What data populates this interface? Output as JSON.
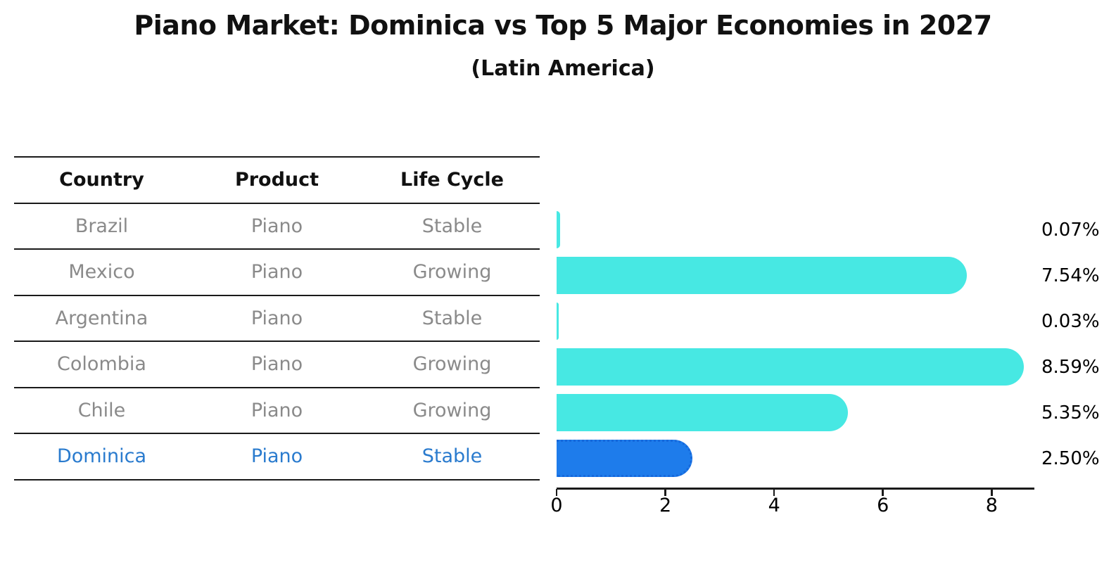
{
  "header": {
    "title": "Piano Market: Dominica vs Top 5 Major Economies in 2027",
    "subtitle": "(Latin America)"
  },
  "table": {
    "columns": [
      "Country",
      "Product",
      "Life Cycle"
    ],
    "rows": [
      {
        "country": "Brazil",
        "product": "Piano",
        "life_cycle": "Stable"
      },
      {
        "country": "Mexico",
        "product": "Piano",
        "life_cycle": "Growing"
      },
      {
        "country": "Argentina",
        "product": "Piano",
        "life_cycle": "Stable"
      },
      {
        "country": "Colombia",
        "product": "Piano",
        "life_cycle": "Growing"
      },
      {
        "country": "Chile",
        "product": "Piano",
        "life_cycle": "Growing"
      },
      {
        "country": "Dominica",
        "product": "Piano",
        "life_cycle": "Stable"
      }
    ],
    "highlighted_row": "Dominica"
  },
  "chart_data": {
    "type": "bar",
    "orientation": "horizontal",
    "title": "Piano Market: Dominica vs Top 5 Major Economies in 2027",
    "subtitle": "(Latin America)",
    "categories": [
      "Brazil",
      "Mexico",
      "Argentina",
      "Colombia",
      "Chile",
      "Dominica"
    ],
    "values": [
      0.07,
      7.54,
      0.03,
      8.59,
      5.35,
      2.5
    ],
    "value_labels": [
      "0.07%",
      "7.54%",
      "0.03%",
      "8.59%",
      "5.35%",
      "2.50%"
    ],
    "x_ticks": [
      0,
      2,
      4,
      6,
      8
    ],
    "xlim": [
      0,
      8.785
    ],
    "xlabel": "",
    "ylabel": "",
    "grid": false,
    "legend": "none",
    "highlight_index": 5,
    "bar_color": "#47E8E3",
    "highlight_bar_color": "#1E7CEB"
  },
  "colors": {
    "bar_cyan": "#47E8E3",
    "bar_blue": "#1E7CEB",
    "bar_blue_border": "#1668DB",
    "highlight_text": "#2A7BCE",
    "table_text": "#8A8A8A",
    "heading_text": "#111111",
    "axis": "#1A1A1A"
  }
}
